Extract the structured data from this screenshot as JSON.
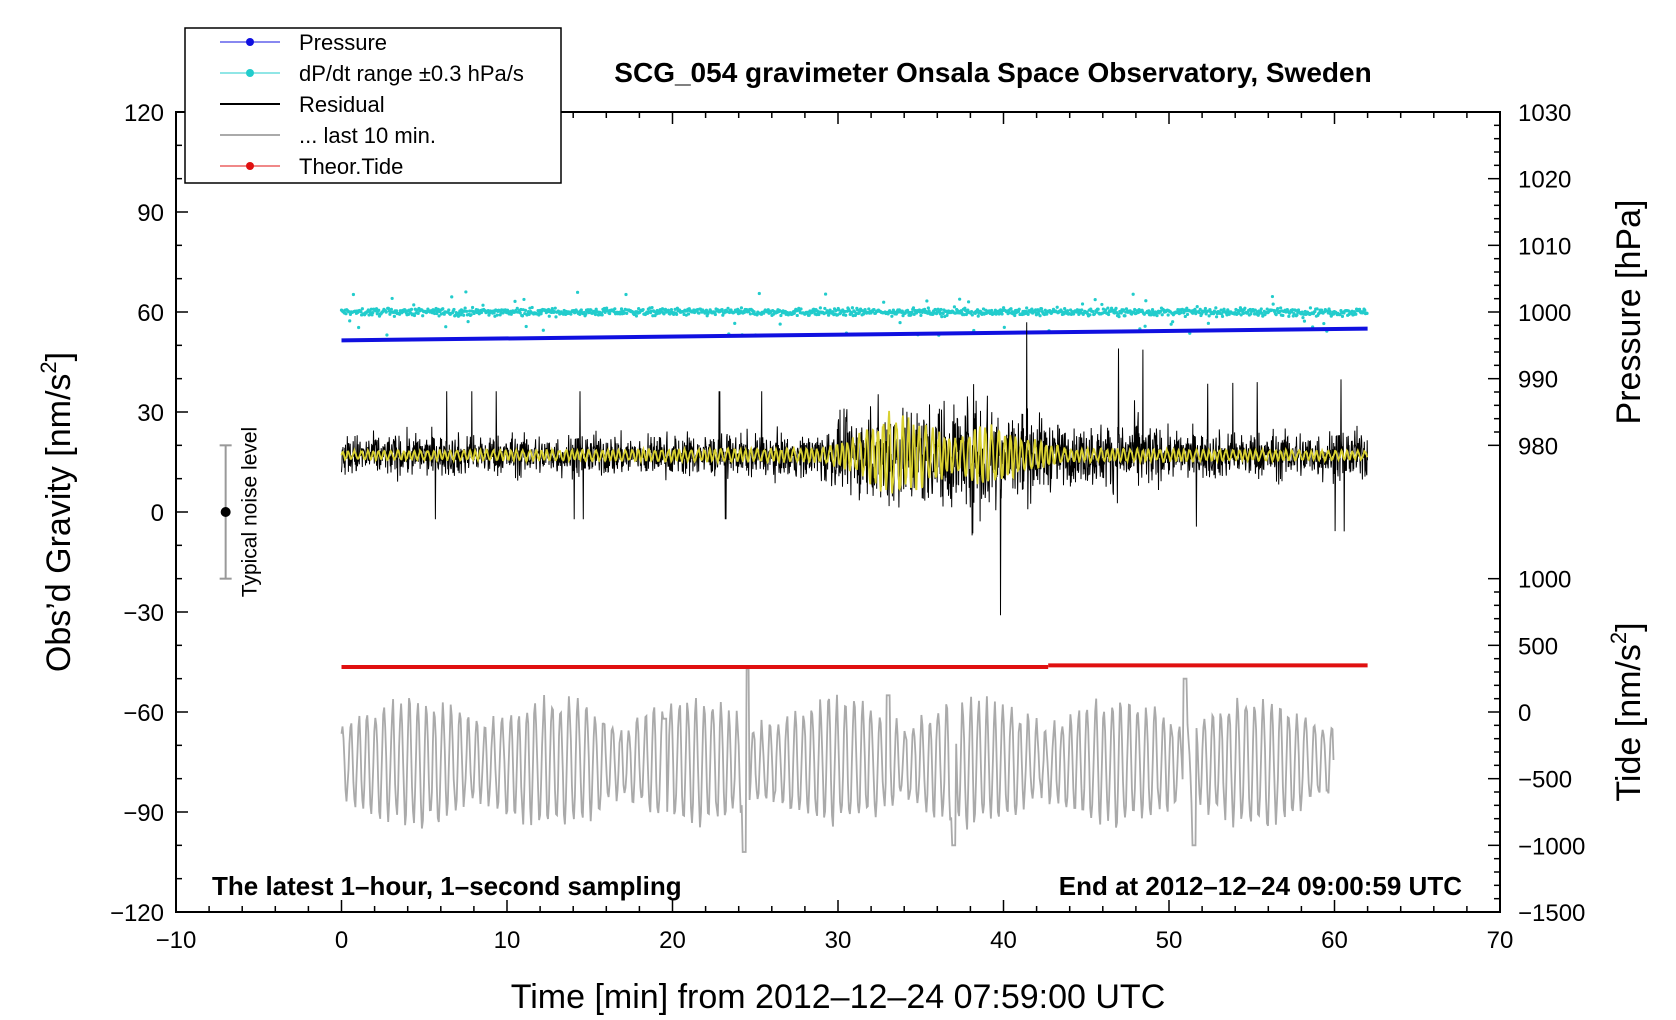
{
  "chart_data": {
    "type": "line",
    "title": "SCG_054 gravimeter Onsala Space Observatory, Sweden",
    "xlabel": "Time [min] from 2012–12–24 07:59:00 UTC",
    "ylabel_left": "Obs’d Gravity [nm/s²]",
    "ylabel_right_top": "Pressure [hPa]",
    "ylabel_right_bottom": "Tide [nm/s²]",
    "xlim": [
      -10,
      70
    ],
    "ylim": [
      -120,
      120
    ],
    "x_ticks": [
      "−10",
      "0",
      "10",
      "20",
      "30",
      "40",
      "50",
      "60",
      "70"
    ],
    "x_tick_values": [
      -10,
      0,
      10,
      20,
      30,
      40,
      50,
      60,
      70
    ],
    "y_left_ticks": [
      "120",
      "90",
      "60",
      "30",
      "0",
      "−30",
      "−60",
      "−90",
      "−120"
    ],
    "y_left_tick_values": [
      120,
      90,
      60,
      30,
      0,
      -30,
      -60,
      -90,
      -120
    ],
    "pressure_axis": {
      "ticks": [
        "1030",
        "1020",
        "1010",
        "1000",
        "990",
        "980"
      ],
      "values": [
        1030,
        1020,
        1010,
        1000,
        990,
        980
      ],
      "map": {
        "value_a": 1030,
        "gravity_a": 120,
        "value_b": 980,
        "gravity_b": 20
      }
    },
    "tide_axis": {
      "ticks": [
        "1000",
        "500",
        "0",
        "−500",
        "−1000",
        "−1500"
      ],
      "values": [
        1000,
        500,
        0,
        -500,
        -1000,
        -1500
      ],
      "map": {
        "value_a": 1000,
        "gravity_a": -20,
        "value_b": -1500,
        "gravity_b": -120
      }
    },
    "legend": {
      "position": "top-left",
      "entries": [
        {
          "label": "Pressure",
          "color": "#1010e0",
          "marker": "dot"
        },
        {
          "label": "dP/dt range ±0.3 hPa/s",
          "color": "#22cccc",
          "marker": "dot"
        },
        {
          "label": "Residual",
          "color": "#000000",
          "marker": "line"
        },
        {
          "label": "... last 10 min.",
          "color": "#aaaaaa",
          "marker": "line"
        },
        {
          "label": "Theor.Tide",
          "color": "#e01010",
          "marker": "dot"
        }
      ]
    },
    "series": [
      {
        "name": "Pressure",
        "color": "#1010e0",
        "x_range": [
          0,
          62
        ],
        "gravity_start": 51.5,
        "gravity_end": 55
      },
      {
        "name": "dP/dt range ±0.3 hPa/s",
        "color": "#22cccc",
        "x_range": [
          0,
          62
        ],
        "center": 60,
        "spread": 2,
        "outlier_max": 7
      },
      {
        "name": "Residual",
        "color": "#000000",
        "x_range": [
          0,
          62
        ],
        "center": 17,
        "amplitude": 12,
        "burst_envelope": [
          [
            0,
            1.0
          ],
          [
            28,
            1.0
          ],
          [
            30,
            1.6
          ],
          [
            33,
            2.6
          ],
          [
            36,
            2.4
          ],
          [
            39,
            3.4
          ],
          [
            41,
            2.2
          ],
          [
            44,
            1.3
          ],
          [
            48,
            1.8
          ],
          [
            50,
            1.1
          ],
          [
            62,
            1.2
          ]
        ]
      },
      {
        "name": "Residual (smoothed)",
        "color": "#d8d030",
        "x_range": [
          0,
          62
        ],
        "center": 17,
        "amplitude": 1.5,
        "burst_envelope": [
          [
            0,
            1.0
          ],
          [
            29,
            1.5
          ],
          [
            31,
            4.0
          ],
          [
            33,
            9.0
          ],
          [
            35,
            7.0
          ],
          [
            37,
            4.0
          ],
          [
            39,
            7.0
          ],
          [
            41,
            4.0
          ],
          [
            44,
            1.5
          ],
          [
            62,
            1.0
          ]
        ]
      },
      {
        "name": "... last 10 min.",
        "color": "#aaaaaa",
        "x_range": [
          0,
          60
        ],
        "center": -75,
        "amplitude": 9,
        "peaks": [
          [
            24.5,
            -47
          ],
          [
            24.3,
            -102
          ],
          [
            19.5,
            -62
          ],
          [
            33,
            -55
          ],
          [
            51,
            -50
          ],
          [
            51.5,
            -100
          ],
          [
            37,
            -100
          ]
        ]
      },
      {
        "name": "Theor.Tide",
        "color": "#e01010",
        "x_range": [
          0,
          62
        ],
        "gravity_start": -46.5,
        "gravity_end": -46.0,
        "step_at": 42.7
      }
    ],
    "typical_noise_level": {
      "label": "Typical noise level",
      "x": -7,
      "center": 0,
      "half_range": 20
    },
    "annotations": {
      "bottom_left": "The latest 1–hour, 1–second sampling",
      "bottom_right": "End at 2012–12–24 09:00:59 UTC"
    }
  }
}
